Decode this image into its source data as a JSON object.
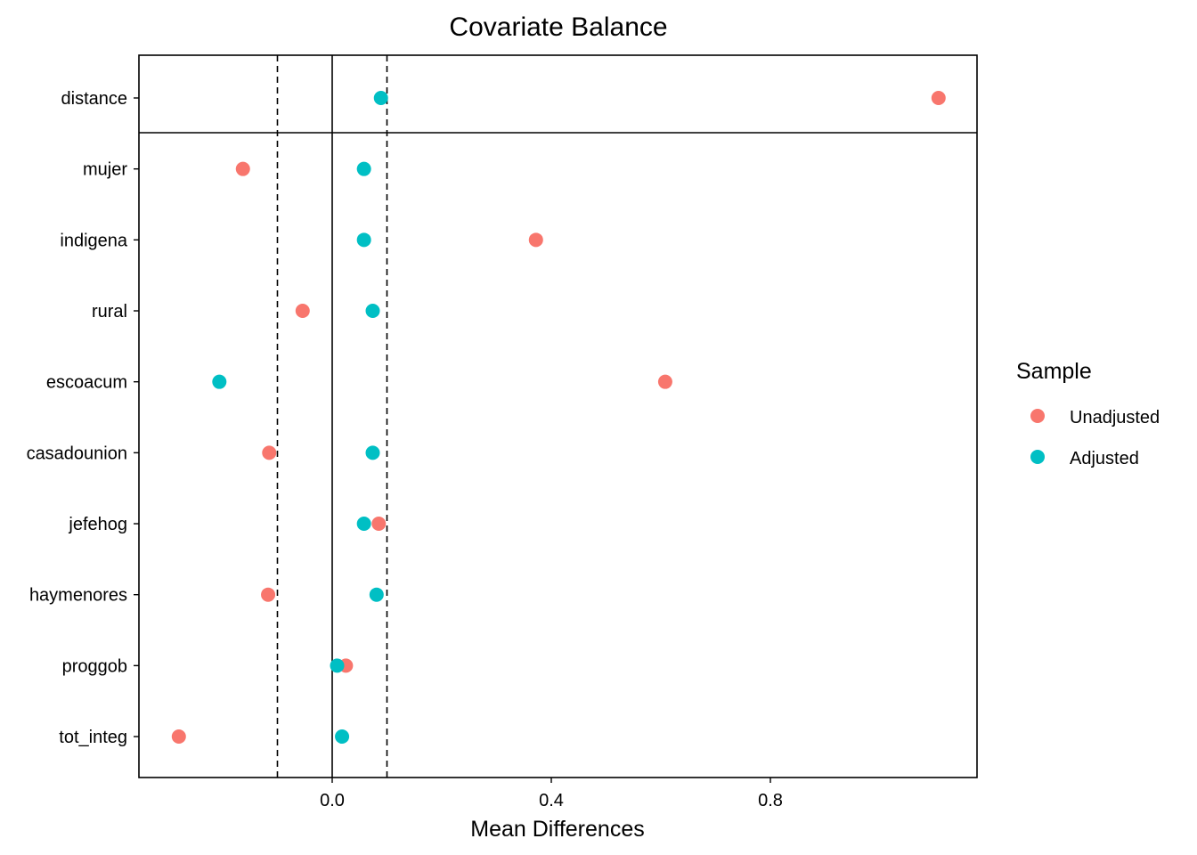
{
  "chart_data": {
    "type": "scatter",
    "title": "Covariate Balance",
    "xlabel": "Mean Differences",
    "ylabel": "",
    "xlim": [
      -0.35,
      1.18
    ],
    "x_ticks": [
      0.0,
      0.4,
      0.8
    ],
    "x_tick_labels": [
      "0.0",
      "0.4",
      "0.8"
    ],
    "categories": [
      "distance",
      "mujer",
      "indigena",
      "rural",
      "escoacum",
      "casadounion",
      "jefehog",
      "haymenores",
      "proggob",
      "tot_integ"
    ],
    "reference_lines": {
      "solid": [
        0.0
      ],
      "dashed": [
        -0.1,
        0.1
      ]
    },
    "distance_separator": true,
    "grid": false,
    "legend": {
      "title": "Sample",
      "position": "right"
    },
    "series": [
      {
        "name": "Unadjusted",
        "color": "#F8766D",
        "values": [
          1.107,
          -0.163,
          0.372,
          -0.054,
          0.608,
          -0.115,
          0.085,
          -0.117,
          0.025,
          -0.28
        ]
      },
      {
        "name": "Adjusted",
        "color": "#00BFC4",
        "values": [
          0.089,
          0.058,
          0.058,
          0.074,
          -0.206,
          0.074,
          0.058,
          0.081,
          0.009,
          0.018
        ]
      }
    ]
  }
}
